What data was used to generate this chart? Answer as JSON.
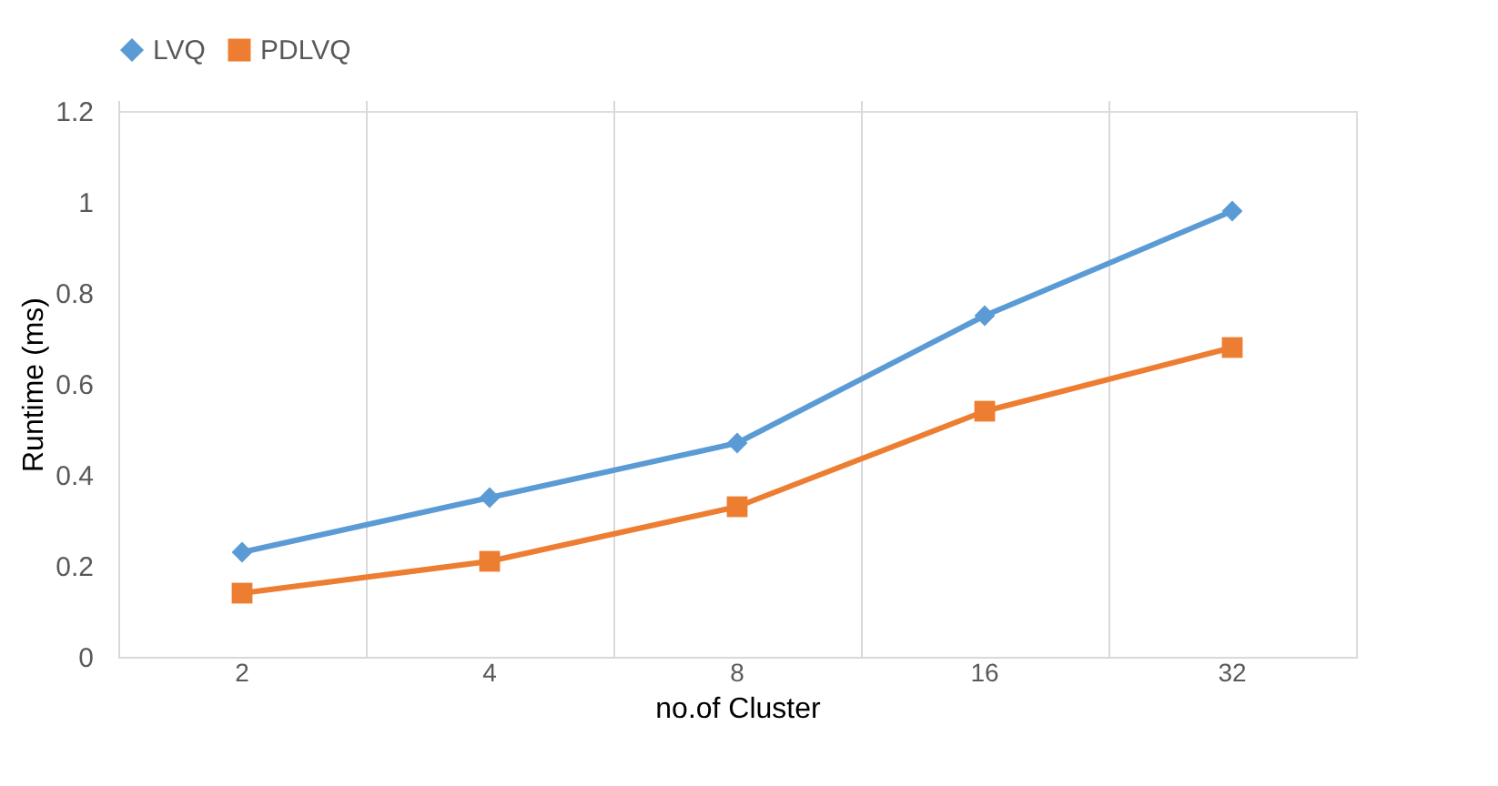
{
  "chart_data": {
    "type": "line",
    "xlabel": "no.of Cluster",
    "ylabel": "Runtime (ms)",
    "categories": [
      "2",
      "4",
      "8",
      "16",
      "32"
    ],
    "series": [
      {
        "name": "LVQ",
        "color": "#5b9bd5",
        "marker": "diamond",
        "values": [
          0.23,
          0.35,
          0.47,
          0.75,
          0.98
        ]
      },
      {
        "name": "PDLVQ",
        "color": "#ed7d31",
        "marker": "square",
        "values": [
          0.14,
          0.21,
          0.33,
          0.54,
          0.68
        ]
      }
    ],
    "ylim": [
      0,
      1.2
    ],
    "yticks": [
      0,
      0.2,
      0.4,
      0.6,
      0.8,
      1,
      1.2
    ],
    "grid": "x",
    "legend": "top"
  }
}
